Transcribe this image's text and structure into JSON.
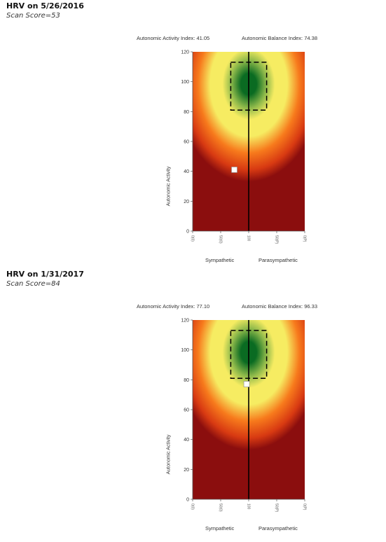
{
  "charts": [
    {
      "title": "HRV on 5/26/2016",
      "score": "Scan Score=53",
      "activity_label": "Autonomic Activity Index: 41.05",
      "balance_label": "Autonomic Balance Index: 74.38",
      "sympathetic_label": "Sympathetic",
      "parasympathetic_label": "Parasympathetic"
    },
    {
      "title": "HRV on 1/31/2017",
      "score": "Scan Score=84",
      "activity_label": "Autonomic Activity Index: 77.10",
      "balance_label": "Autonomic Balance Index: 96.33",
      "sympathetic_label": "Sympathetic",
      "parasympathetic_label": "Parasympathetic"
    }
  ],
  "chart_data": [
    {
      "type": "scatter",
      "title": "",
      "xlabel": "",
      "ylabel": "Autonomic Activity",
      "xlim": [
        0,
        200
      ],
      "ylim": [
        0,
        120
      ],
      "xticks": [
        "0(0)",
        "50(0)",
        "100",
        "50(P)",
        "0(P)"
      ],
      "yticks": [
        0,
        20,
        40,
        60,
        80,
        100,
        120
      ],
      "points": [
        {
          "x": 74.38,
          "y": 41.05
        }
      ],
      "target_box": {
        "x": [
          68,
          132
        ],
        "y": [
          81,
          113
        ]
      },
      "center_line_x": 100,
      "colors": {
        "optimal": "#0a6b22",
        "good": "#f6ec62",
        "fair": "#f77a1c",
        "poor": "#8b0e0e"
      }
    },
    {
      "type": "scatter",
      "title": "",
      "xlabel": "",
      "ylabel": "Autonomic Activity",
      "xlim": [
        0,
        200
      ],
      "ylim": [
        0,
        120
      ],
      "xticks": [
        "0(0)",
        "50(0)",
        "100",
        "50(P)",
        "0(P)"
      ],
      "yticks": [
        0,
        20,
        40,
        60,
        80,
        100,
        120
      ],
      "points": [
        {
          "x": 96.33,
          "y": 77.1
        }
      ],
      "target_box": {
        "x": [
          68,
          132
        ],
        "y": [
          81,
          113
        ]
      },
      "center_line_x": 100,
      "colors": {
        "optimal": "#0a6b22",
        "good": "#f6ec62",
        "fair": "#f77a1c",
        "poor": "#8b0e0e"
      }
    }
  ]
}
